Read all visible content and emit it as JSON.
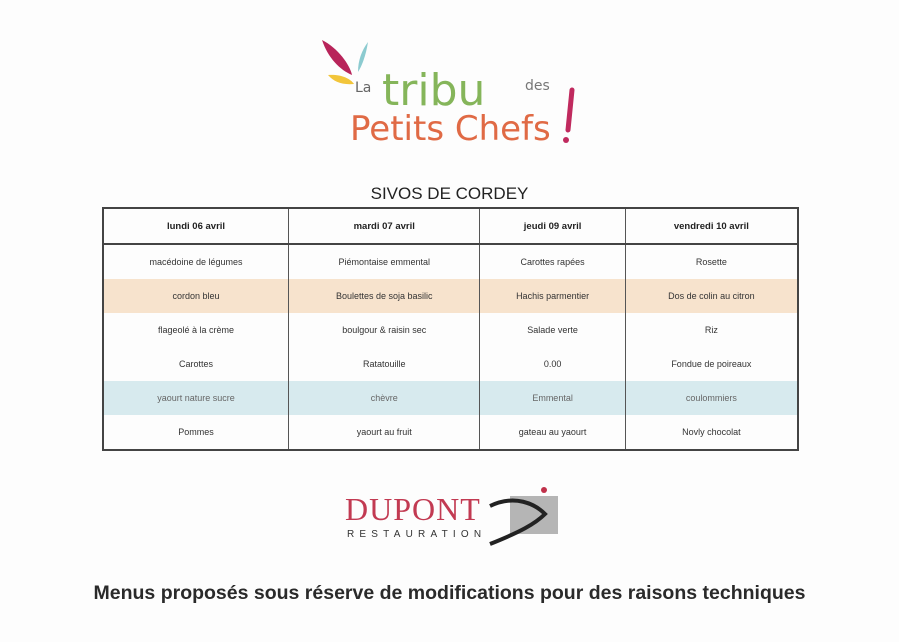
{
  "logo_top": {
    "text_line1_small": "La",
    "text_line1_big": "tribu",
    "text_line1_suffix": "des",
    "text_line2": "Petits Chefs",
    "exclamation": "!"
  },
  "title": "SIVOS DE CORDEY",
  "table": {
    "headers": [
      "lundi 06 avril",
      "mardi 07 avril",
      "jeudi 09 avril",
      "vendredi 10 avril"
    ],
    "rows": [
      [
        "macédoine de légumes",
        "Piémontaise emmental",
        "Carottes rapées",
        "Rosette"
      ],
      [
        "cordon bleu",
        "Boulettes de soja basilic",
        "Hachis parmentier",
        "Dos de colin au citron"
      ],
      [
        "flageolé à la crème",
        "boulgour & raisin sec",
        "Salade verte",
        "Riz"
      ],
      [
        "Carottes",
        "Ratatouille",
        "0.00",
        "Fondue de poireaux"
      ],
      [
        "yaourt nature sucre",
        "chèvre",
        "Emmental",
        "coulommiers"
      ],
      [
        "Pommes",
        "yaourt au fruit",
        "gateau au yaourt",
        "Novly chocolat"
      ]
    ],
    "row_colors": {
      "main_course": "#f7e3cd",
      "cheese": "#d7eaee"
    }
  },
  "logo_bottom": {
    "brand": "DUPONT",
    "tagline": "RESTAURATION"
  },
  "footer": "Menus proposés sous réserve de modifications pour des raisons techniques"
}
